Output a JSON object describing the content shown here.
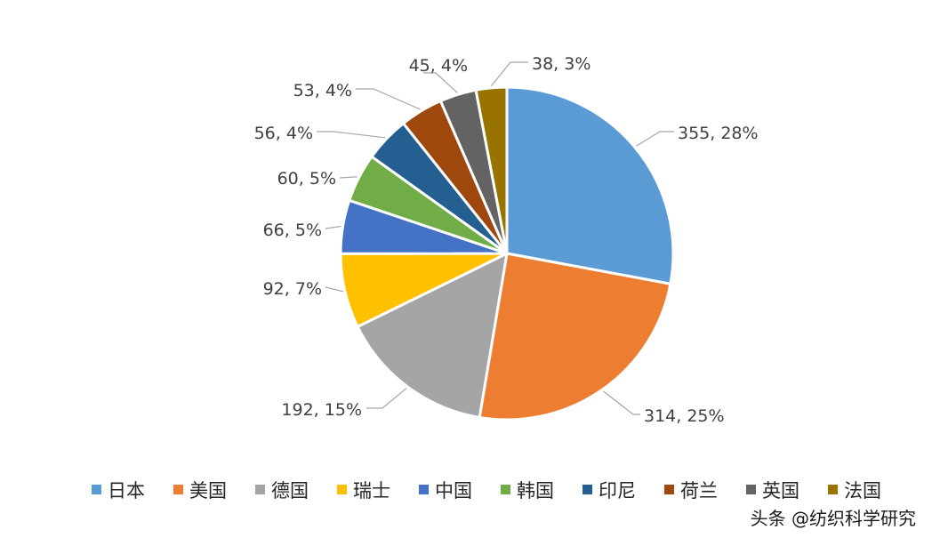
{
  "chart_data": {
    "type": "pie",
    "title": "",
    "slices": [
      {
        "name": "日本",
        "value": 355,
        "percent": "28%",
        "label": "355, 28%",
        "color": "#5B9BD5"
      },
      {
        "name": "美国",
        "value": 314,
        "percent": "25%",
        "label": "314, 25%",
        "color": "#ED7D31"
      },
      {
        "name": "德国",
        "value": 192,
        "percent": "15%",
        "label": "192, 15%",
        "color": "#A5A5A5"
      },
      {
        "name": "瑞士",
        "value": 92,
        "percent": "7%",
        "label": "92, 7%",
        "color": "#FFC000"
      },
      {
        "name": "中国",
        "value": 66,
        "percent": "5%",
        "label": "66, 5%",
        "color": "#4472C4"
      },
      {
        "name": "韩国",
        "value": 60,
        "percent": "5%",
        "label": "60, 5%",
        "color": "#70AD47"
      },
      {
        "name": "印尼",
        "value": 56,
        "percent": "4%",
        "label": "56, 4%",
        "color": "#255E91"
      },
      {
        "name": "荷兰",
        "value": 53,
        "percent": "4%",
        "label": "53, 4%",
        "color": "#9E480E"
      },
      {
        "name": "英国",
        "value": 45,
        "percent": "4%",
        "label": "45, 4%",
        "color": "#636363"
      },
      {
        "name": "法国",
        "value": 38,
        "percent": "3%",
        "label": "38, 3%",
        "color": "#997300"
      }
    ],
    "legend_position": "bottom"
  },
  "watermark": "头条 @纺织科学研究"
}
